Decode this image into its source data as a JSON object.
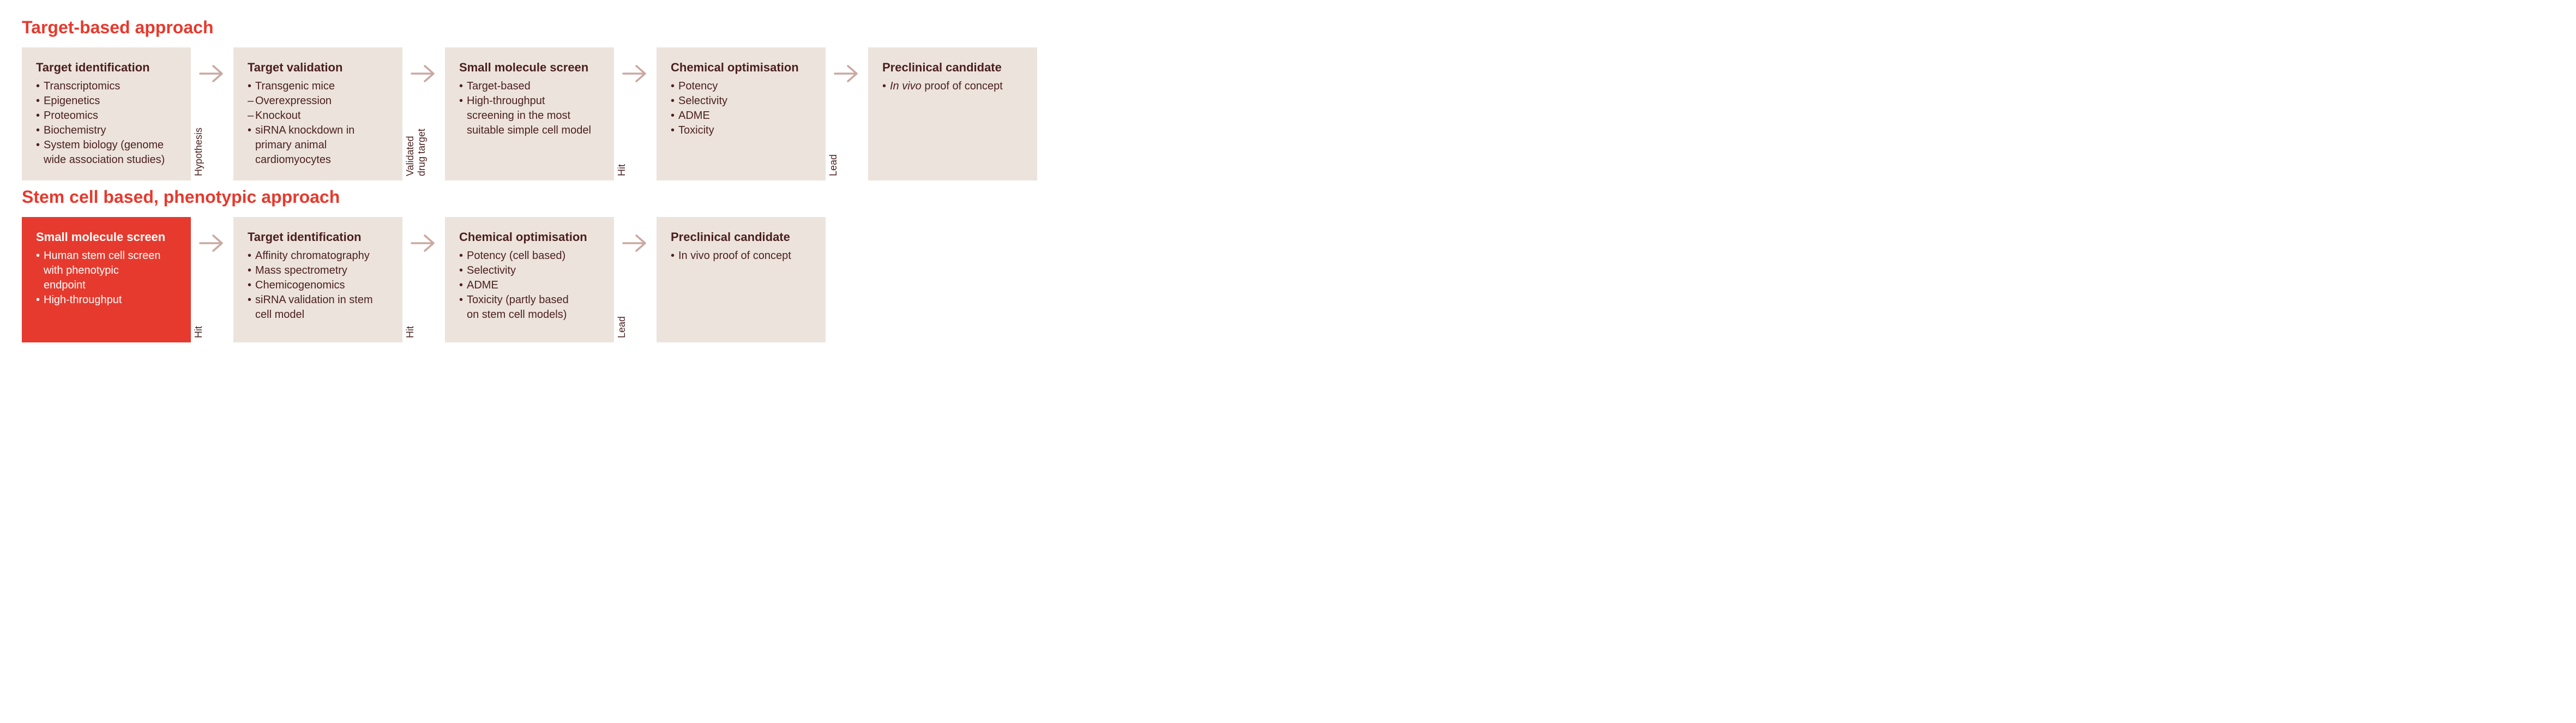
{
  "colors": {
    "heading": "#e63a2e",
    "box_bg": "#ece3dc",
    "box_text": "#4a1f1f",
    "highlight_bg": "#e63a2e",
    "highlight_text": "#ffffff",
    "arrow": "#c9a9a2",
    "connector_label": "#4a1f1f"
  },
  "typography": {
    "heading_fontsize": 32,
    "stage_title_fontsize": 22,
    "item_fontsize": 20,
    "connector_label_fontsize": 18
  },
  "sections": [
    {
      "title": "Target-based approach",
      "stages": [
        {
          "highlight": false,
          "title": "Target identification",
          "items": [
            {
              "t": "Transcriptomics",
              "m": "bullet"
            },
            {
              "t": "Epigenetics",
              "m": "bullet"
            },
            {
              "t": "Proteomics",
              "m": "bullet"
            },
            {
              "t": "Biochemistry",
              "m": "bullet"
            },
            {
              "t": "System biology (genome",
              "m": "bullet"
            },
            {
              "t": "wide association studies)",
              "m": "cont"
            }
          ]
        },
        {
          "highlight": false,
          "title": "Target validation",
          "items": [
            {
              "t": "Transgenic mice",
              "m": "bullet"
            },
            {
              "t": "Overexpression",
              "m": "dash"
            },
            {
              "t": "Knockout",
              "m": "dash"
            },
            {
              "t": "siRNA knockdown in",
              "m": "bullet"
            },
            {
              "t": "primary animal",
              "m": "cont"
            },
            {
              "t": "cardiomyocytes",
              "m": "cont"
            }
          ]
        },
        {
          "highlight": false,
          "title": "Small molecule screen",
          "items": [
            {
              "t": "Target-based",
              "m": "bullet"
            },
            {
              "t": "High-throughput",
              "m": "bullet"
            },
            {
              "t": "screening in the most",
              "m": "cont"
            },
            {
              "t": "suitable simple cell model",
              "m": "cont"
            }
          ]
        },
        {
          "highlight": false,
          "title": "Chemical optimisation",
          "items": [
            {
              "t": "Potency",
              "m": "bullet"
            },
            {
              "t": "Selectivity",
              "m": "bullet"
            },
            {
              "t": "ADME",
              "m": "bullet"
            },
            {
              "t": "Toxicity",
              "m": "bullet"
            }
          ]
        },
        {
          "highlight": false,
          "title": "Preclinical candidate",
          "items": [
            {
              "t": "In vivo",
              "m": "bullet",
              "italic_prefix": true,
              "rest": " proof of concept"
            }
          ]
        }
      ],
      "connectors": [
        "Hypothesis",
        "Validated\ndrug target",
        "Hit",
        "Lead"
      ]
    },
    {
      "title": "Stem cell based, phenotypic approach",
      "stages": [
        {
          "highlight": true,
          "title": "Small molecule screen",
          "items": [
            {
              "t": "Human stem cell screen",
              "m": "bullet"
            },
            {
              "t": "with phenotypic",
              "m": "cont"
            },
            {
              "t": "endpoint",
              "m": "cont"
            },
            {
              "t": "High-throughput",
              "m": "bullet"
            }
          ]
        },
        {
          "highlight": false,
          "title": "Target identification",
          "items": [
            {
              "t": "Affinity chromatography",
              "m": "bullet"
            },
            {
              "t": "Mass spectrometry",
              "m": "bullet"
            },
            {
              "t": "Chemicogenomics",
              "m": "bullet"
            },
            {
              "t": "siRNA validation in stem",
              "m": "bullet"
            },
            {
              "t": "cell model",
              "m": "cont"
            }
          ]
        },
        {
          "highlight": false,
          "title": "Chemical optimisation",
          "items": [
            {
              "t": "Potency (cell based)",
              "m": "bullet"
            },
            {
              "t": "Selectivity",
              "m": "bullet"
            },
            {
              "t": "ADME",
              "m": "bullet"
            },
            {
              "t": "Toxicity (partly based",
              "m": "bullet"
            },
            {
              "t": "on stem cell models)",
              "m": "cont"
            }
          ]
        },
        {
          "highlight": false,
          "title": "Preclinical candidate",
          "items": [
            {
              "t": "In vivo proof of concept",
              "m": "bullet"
            }
          ]
        }
      ],
      "connectors": [
        "Hit",
        "Hit",
        "Lead"
      ]
    }
  ]
}
